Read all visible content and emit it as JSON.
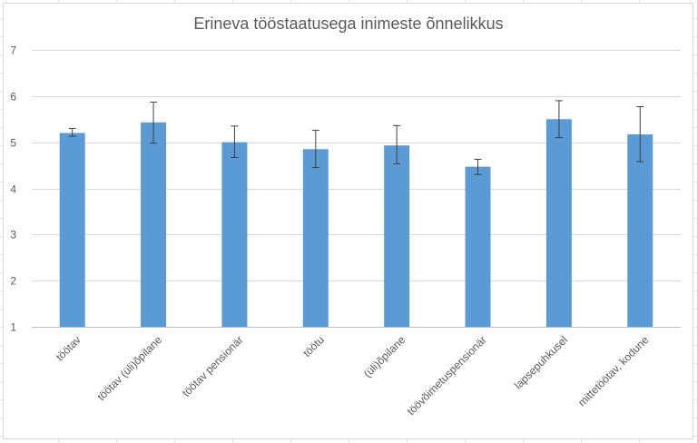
{
  "chart_data": {
    "type": "bar",
    "title": "Erineva tööstaatusega inimeste õnnelikkus",
    "xlabel": "",
    "ylabel": "",
    "ylim": [
      1,
      7
    ],
    "yticks": [
      1,
      2,
      3,
      4,
      5,
      6,
      7
    ],
    "grid": true,
    "categories": [
      "töötav",
      "töötav (üli)õpilane",
      "töötav pensionär",
      "töötu",
      "(üli)õpilane",
      "töövõimetuspensionär",
      "lapsepuhkusel",
      "mittetöötav, kodune"
    ],
    "values": [
      5.2,
      5.43,
      5.0,
      4.85,
      4.93,
      4.47,
      5.5,
      5.17
    ],
    "error_low": [
      5.13,
      4.98,
      4.67,
      4.45,
      4.53,
      4.3,
      5.1,
      4.58
    ],
    "error_high": [
      5.3,
      5.87,
      5.35,
      5.26,
      5.36,
      4.63,
      5.9,
      5.77
    ],
    "bar_color": "#5b9bd5"
  }
}
